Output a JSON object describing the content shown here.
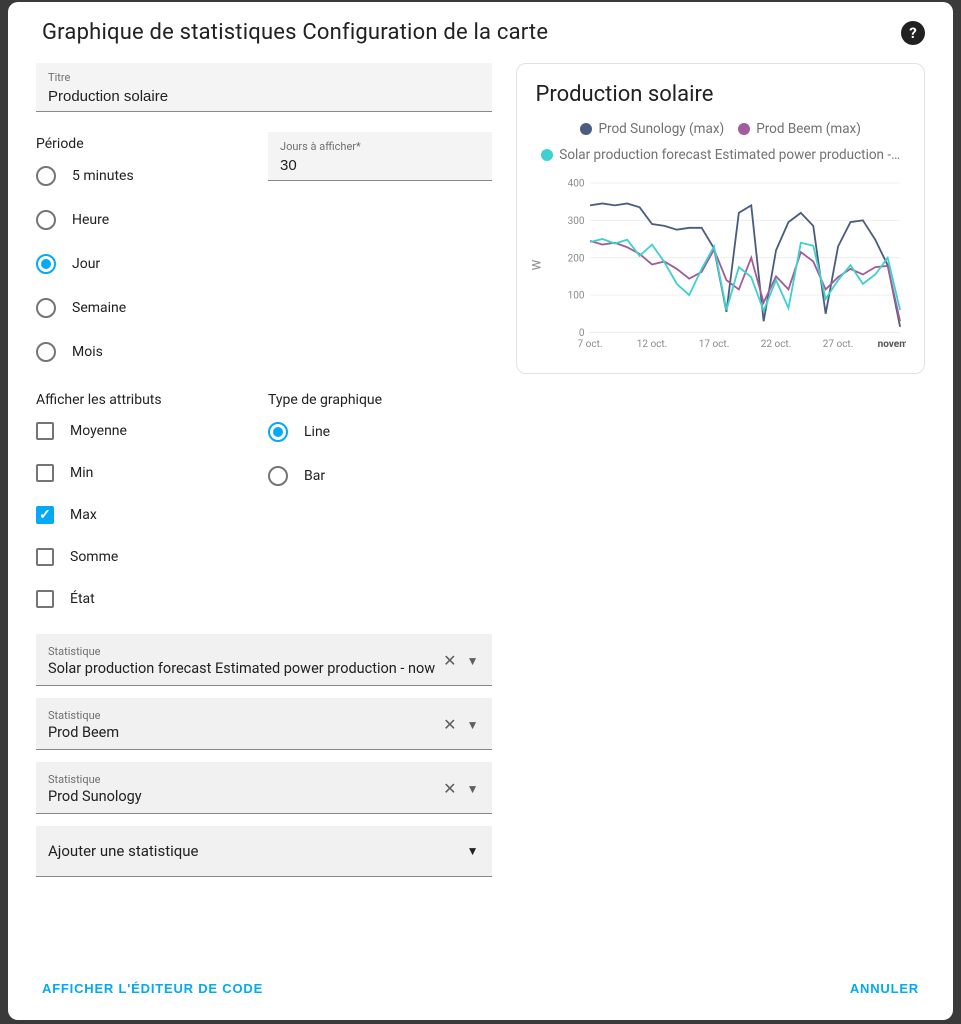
{
  "dialog": {
    "title": "Graphique de statistiques Configuration de la carte"
  },
  "title_field": {
    "label": "Titre",
    "value": "Production solaire"
  },
  "period": {
    "label": "Période",
    "options": [
      {
        "label": "5 minutes",
        "checked": false
      },
      {
        "label": "Heure",
        "checked": false
      },
      {
        "label": "Jour",
        "checked": true
      },
      {
        "label": "Semaine",
        "checked": false
      },
      {
        "label": "Mois",
        "checked": false
      }
    ]
  },
  "days_field": {
    "label": "Jours à afficher*",
    "value": "30"
  },
  "attributes": {
    "label": "Afficher les attributs",
    "options": [
      {
        "label": "Moyenne",
        "checked": false
      },
      {
        "label": "Min",
        "checked": false
      },
      {
        "label": "Max",
        "checked": true
      },
      {
        "label": "Somme",
        "checked": false
      },
      {
        "label": "État",
        "checked": false
      }
    ]
  },
  "chart_type": {
    "label": "Type de graphique",
    "options": [
      {
        "label": "Line",
        "checked": true
      },
      {
        "label": "Bar",
        "checked": false
      }
    ]
  },
  "statistics": {
    "item_label": "Statistique",
    "items": [
      {
        "value": "Solar production forecast Estimated power production - now"
      },
      {
        "value": "Prod Beem"
      },
      {
        "value": "Prod Sunology"
      }
    ],
    "add_label": "Ajouter une statistique"
  },
  "footer": {
    "code_editor": "AFFICHER L'ÉDITEUR DE CODE",
    "cancel": "ANNULER"
  },
  "preview": {
    "title": "Production solaire",
    "legend": [
      {
        "label": "Prod Sunology (max)",
        "color": "#4b5d7f"
      },
      {
        "label": "Prod Beem (max)",
        "color": "#a25c9b"
      },
      {
        "label": "Solar production forecast Estimated power production -…",
        "color": "#3ed1cf"
      }
    ],
    "y_axis_label": "W",
    "y_ticks": [
      0,
      100,
      200,
      300,
      400
    ],
    "x_ticks": [
      "7 oct.",
      "12 oct.",
      "17 oct.",
      "22 oct.",
      "27 oct.",
      "novembre"
    ],
    "ylim": [
      0,
      400
    ],
    "grid_color": "#ececec",
    "series": [
      {
        "color": "#4b5d7f",
        "values": [
          340,
          345,
          340,
          345,
          335,
          290,
          285,
          275,
          280,
          280,
          225,
          55,
          320,
          340,
          30,
          220,
          295,
          320,
          285,
          50,
          230,
          295,
          300,
          248,
          180,
          15
        ]
      },
      {
        "color": "#a25c9b",
        "values": [
          245,
          235,
          240,
          228,
          210,
          182,
          190,
          170,
          144,
          162,
          222,
          140,
          115,
          200,
          80,
          150,
          115,
          215,
          190,
          115,
          148,
          170,
          155,
          175,
          178,
          30
        ]
      },
      {
        "color": "#3ed1cf",
        "values": [
          242,
          250,
          238,
          248,
          205,
          235,
          188,
          130,
          100,
          170,
          230,
          60,
          175,
          148,
          58,
          140,
          65,
          240,
          232,
          90,
          140,
          180,
          130,
          155,
          200,
          60
        ]
      }
    ]
  }
}
